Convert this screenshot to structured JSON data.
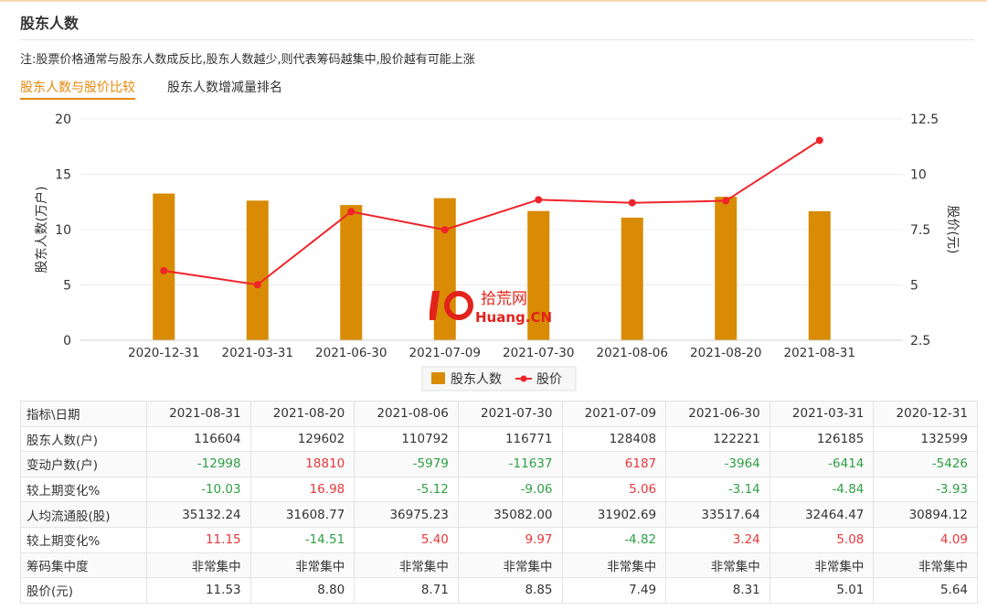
{
  "section": {
    "title": "股东人数",
    "note": "注:股票价格通常与股东人数成反比,股东人数越少,则代表筹码越集中,股价越有可能上涨"
  },
  "tabs": [
    {
      "label": "股东人数与股价比较",
      "active": true
    },
    {
      "label": "股东人数增减量排名",
      "active": false
    }
  ],
  "watermark": {
    "logo": "10",
    "line1": "拾荒网",
    "line2": "Huang.CN"
  },
  "chart_data": {
    "type": "bar+line",
    "categories": [
      "2020-12-31",
      "2021-03-31",
      "2021-06-30",
      "2021-07-09",
      "2021-07-30",
      "2021-08-06",
      "2021-08-20",
      "2021-08-31"
    ],
    "series": [
      {
        "name": "股东人数",
        "type": "bar",
        "axis": "left",
        "color": "#d98b04",
        "values": [
          13.2599,
          12.6185,
          12.2221,
          12.8408,
          11.6771,
          11.0792,
          12.9602,
          11.6604
        ]
      },
      {
        "name": "股价",
        "type": "line",
        "axis": "right",
        "color": "#f0232a",
        "values": [
          5.64,
          5.01,
          8.31,
          7.49,
          8.85,
          8.71,
          8.8,
          11.53
        ]
      }
    ],
    "ylabel": "股东人数(万户)",
    "ylabel_right": "股价(元)",
    "ylim": [
      0,
      20
    ],
    "yticks": [
      "0",
      "5",
      "10",
      "15",
      "20"
    ],
    "ylim_right": [
      2.5,
      12.5
    ],
    "yticks_right": [
      "2.5",
      "5",
      "7.5",
      "10",
      "12.5"
    ],
    "grid": true,
    "legend_position": "bottom-center"
  },
  "table": {
    "header_label": "指标\\日期",
    "dates": [
      "2021-08-31",
      "2021-08-20",
      "2021-08-06",
      "2021-07-30",
      "2021-07-09",
      "2021-06-30",
      "2021-03-31",
      "2020-12-31"
    ],
    "rows": [
      {
        "label": "股东人数(户)",
        "values": [
          "116604",
          "129602",
          "110792",
          "116771",
          "128408",
          "122221",
          "126185",
          "132599"
        ],
        "colored": false
      },
      {
        "label": "变动户数(户)",
        "values": [
          "-12998",
          "18810",
          "-5979",
          "-11637",
          "6187",
          "-3964",
          "-6414",
          "-5426"
        ],
        "colored": true
      },
      {
        "label": "较上期变化%",
        "values": [
          "-10.03",
          "16.98",
          "-5.12",
          "-9.06",
          "5.06",
          "-3.14",
          "-4.84",
          "-3.93"
        ],
        "colored": true
      },
      {
        "label": "人均流通股(股)",
        "values": [
          "35132.24",
          "31608.77",
          "36975.23",
          "35082.00",
          "31902.69",
          "33517.64",
          "32464.47",
          "30894.12"
        ],
        "colored": false
      },
      {
        "label": "较上期变化%",
        "values": [
          "11.15",
          "-14.51",
          "5.40",
          "9.97",
          "-4.82",
          "3.24",
          "5.08",
          "4.09"
        ],
        "colored": true
      },
      {
        "label": "筹码集中度",
        "values": [
          "非常集中",
          "非常集中",
          "非常集中",
          "非常集中",
          "非常集中",
          "非常集中",
          "非常集中",
          "非常集中"
        ],
        "colored": false
      },
      {
        "label": "股价(元)",
        "values": [
          "11.53",
          "8.80",
          "8.71",
          "8.85",
          "7.49",
          "8.31",
          "5.01",
          "5.64"
        ],
        "colored": false
      }
    ]
  }
}
